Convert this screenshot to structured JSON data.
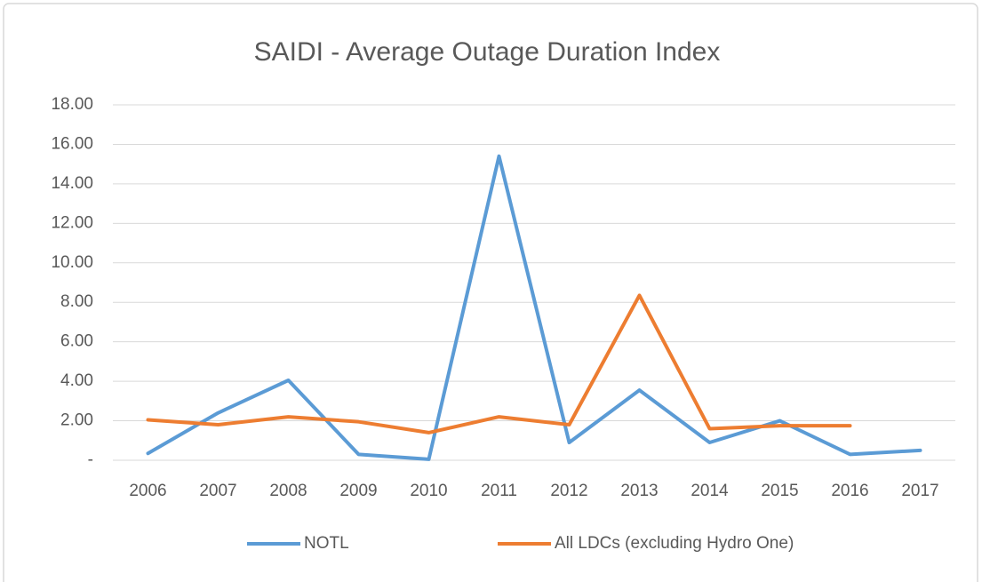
{
  "chart_data": {
    "type": "line",
    "title": "SAIDI - Average Outage Duration Index",
    "categories": [
      "2006",
      "2007",
      "2008",
      "2009",
      "2010",
      "2011",
      "2012",
      "2013",
      "2014",
      "2015",
      "2016",
      "2017"
    ],
    "series": [
      {
        "name": "NOTL",
        "color": "#5b9bd5",
        "values": [
          0.35,
          2.4,
          4.05,
          0.3,
          0.05,
          15.4,
          0.9,
          3.55,
          0.9,
          2.0,
          0.3,
          0.5
        ]
      },
      {
        "name": "All LDCs (excluding Hydro One)",
        "color": "#ed7d31",
        "values": [
          2.05,
          1.8,
          2.2,
          1.95,
          1.4,
          2.2,
          1.8,
          8.35,
          1.6,
          1.75,
          1.75,
          null
        ]
      }
    ],
    "ylim": [
      0,
      18
    ],
    "yticks": [
      {
        "value": 0,
        "label": "-"
      },
      {
        "value": 2,
        "label": "2.00"
      },
      {
        "value": 4,
        "label": "4.00"
      },
      {
        "value": 6,
        "label": "6.00"
      },
      {
        "value": 8,
        "label": "8.00"
      },
      {
        "value": 10,
        "label": "10.00"
      },
      {
        "value": 12,
        "label": "12.00"
      },
      {
        "value": 14,
        "label": "14.00"
      },
      {
        "value": 16,
        "label": "16.00"
      },
      {
        "value": 18,
        "label": "18.00"
      }
    ],
    "grid": true,
    "legend": "bottom"
  }
}
